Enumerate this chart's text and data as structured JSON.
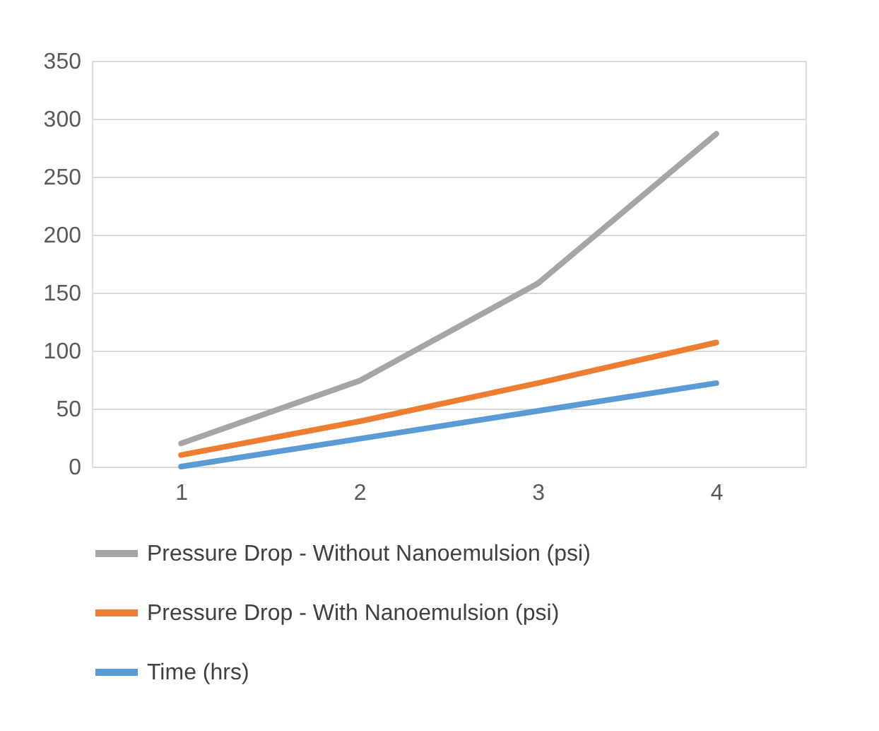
{
  "chart_data": {
    "type": "line",
    "categories": [
      "1",
      "2",
      "3",
      "4"
    ],
    "ylim": [
      0,
      350
    ],
    "yticks": [
      0,
      50,
      100,
      150,
      200,
      250,
      300,
      350
    ],
    "grid": "y",
    "legend": "bottom",
    "marker": "none",
    "line_style": "solid",
    "series": [
      {
        "name": "Pressure Drop - Without Nanoemulsion (psi)",
        "color": "#a5a5a5",
        "values": [
          20,
          74,
          158,
          287
        ]
      },
      {
        "name": "Pressure Drop - With Nanoemulsion (psi)",
        "color": "#ed7d31",
        "values": [
          10,
          39,
          72,
          107
        ]
      },
      {
        "name": "Time (hrs)",
        "color": "#5b9bd5",
        "values": [
          0,
          24,
          48,
          72
        ]
      }
    ]
  }
}
